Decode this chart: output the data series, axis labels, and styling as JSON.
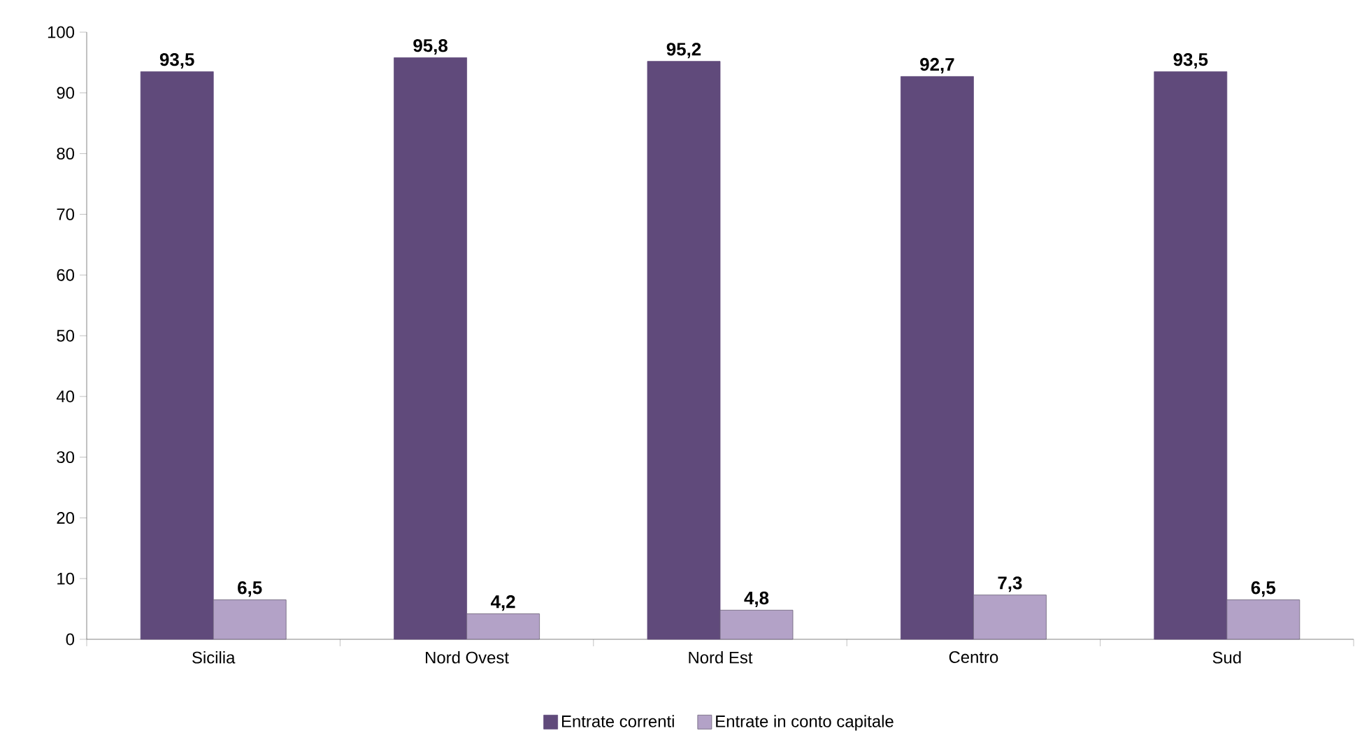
{
  "chart_data": {
    "type": "bar",
    "categories": [
      "Sicilia",
      "Nord Ovest",
      "Nord Est",
      "Centro",
      "Sud"
    ],
    "series": [
      {
        "name": "Entrate correnti",
        "color": "#604a7b",
        "values": [
          93.5,
          95.8,
          95.2,
          92.7,
          93.5
        ],
        "value_labels": [
          "93,5",
          "95,8",
          "95,2",
          "92,7",
          "93,5"
        ]
      },
      {
        "name": "Entrate in conto capitale",
        "color": "#b3a2c7",
        "values": [
          6.5,
          4.2,
          4.8,
          7.3,
          6.5
        ],
        "value_labels": [
          "6,5",
          "4,2",
          "4,8",
          "7,3",
          "6,5"
        ]
      }
    ],
    "ylim": [
      0,
      100
    ],
    "yticks": [
      0,
      10,
      20,
      30,
      40,
      50,
      60,
      70,
      80,
      90,
      100
    ],
    "grid": false,
    "legend": "bottom"
  }
}
